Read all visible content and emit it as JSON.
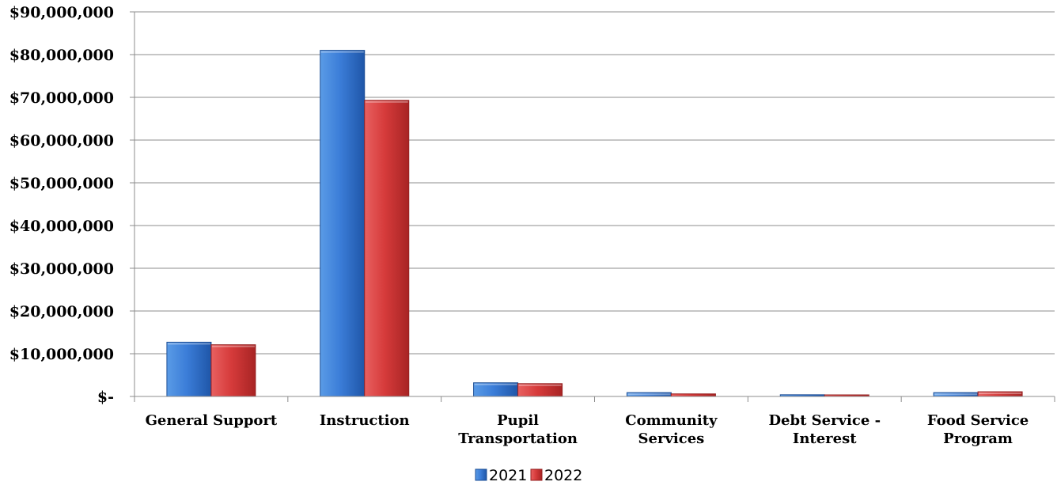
{
  "chart_data": {
    "type": "bar",
    "title": "",
    "xlabel": "",
    "ylabel": "",
    "categories": [
      [
        "General Support"
      ],
      [
        "Instruction"
      ],
      [
        "Pupil",
        "Transportation"
      ],
      [
        "Community",
        "Services"
      ],
      [
        "Debt Service -",
        "Interest"
      ],
      [
        "Food Service",
        "Program"
      ]
    ],
    "series": [
      {
        "name": "2021",
        "color": "#3B7DD8",
        "values": [
          12700000,
          81000000,
          3200000,
          900000,
          400000,
          900000
        ]
      },
      {
        "name": "2022",
        "color": "#D63B3B",
        "values": [
          12100000,
          69300000,
          3000000,
          600000,
          300000,
          1100000
        ]
      }
    ],
    "ylim": [
      0,
      90000000
    ],
    "yticks": [
      0,
      10000000,
      20000000,
      30000000,
      40000000,
      50000000,
      60000000,
      70000000,
      80000000,
      90000000
    ],
    "ytick_labels": [
      "$-",
      "$10,000,000",
      "$20,000,000",
      "$30,000,000",
      "$40,000,000",
      "$50,000,000",
      "$60,000,000",
      "$70,000,000",
      "$80,000,000",
      "$90,000,000"
    ],
    "grid": true,
    "legend": "bottom-center"
  }
}
